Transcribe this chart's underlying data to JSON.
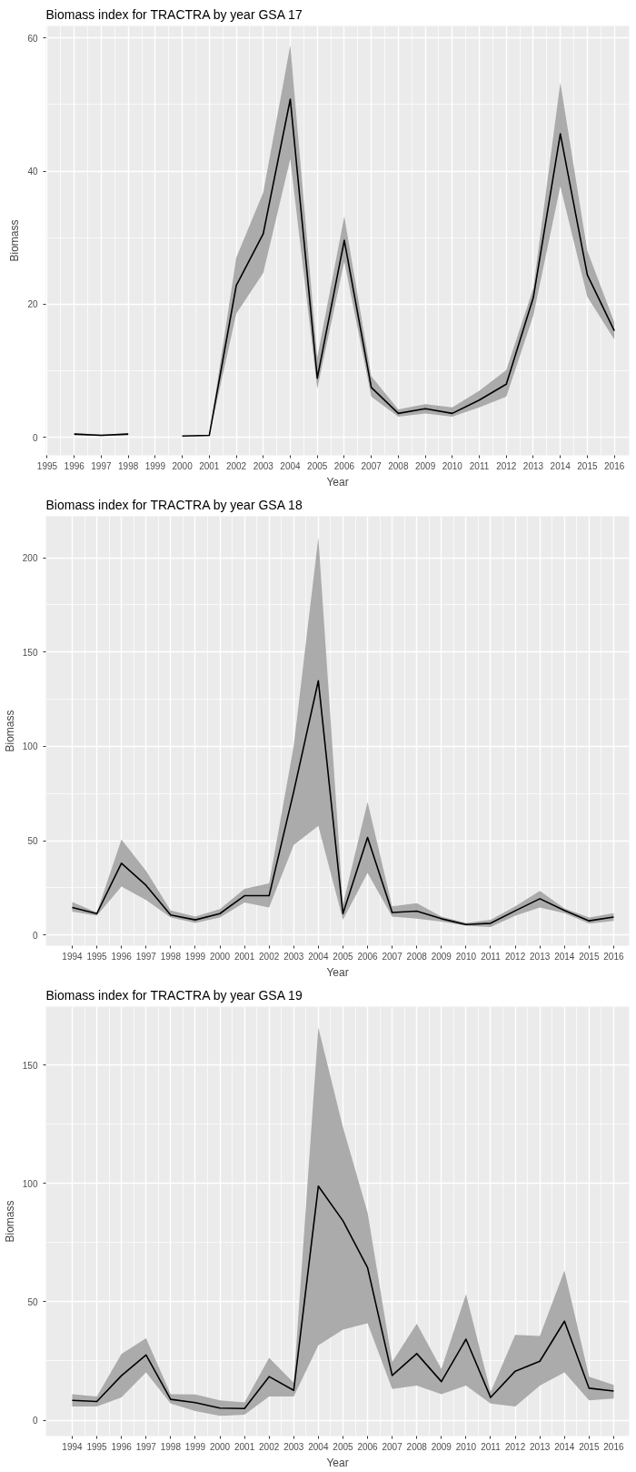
{
  "chart_data": [
    {
      "type": "line",
      "title": "Biomass index for TRACTRA by year GSA 17",
      "xlabel": "Year",
      "ylabel": "Biomass",
      "x": [
        1996,
        1997,
        1998,
        1999,
        2000,
        2001,
        2002,
        2003,
        2004,
        2005,
        2006,
        2007,
        2008,
        2009,
        2010,
        2011,
        2012,
        2013,
        2014,
        2015,
        2016
      ],
      "series": [
        {
          "color": "#000000",
          "values": [
            0.5,
            0.3,
            0.5,
            null,
            0.2,
            0.3,
            22.8,
            30.6,
            50.8,
            8.9,
            29.6,
            7.5,
            3.6,
            4.3,
            3.6,
            5.6,
            8.0,
            21,
            45.6,
            24.4,
            16
          ],
          "lower": [
            0.3,
            0.2,
            0.3,
            null,
            0.1,
            0.2,
            18.6,
            24.7,
            41.8,
            7.3,
            26.4,
            6.1,
            3.1,
            3.6,
            3.1,
            4.5,
            6.1,
            18.3,
            37.7,
            21.1,
            14.7
          ],
          "upper": [
            0.6,
            0.4,
            0.6,
            null,
            0.2,
            0.3,
            27,
            36.8,
            58.9,
            12,
            33.2,
            9.2,
            4.2,
            5,
            4.5,
            7,
            10.1,
            22.4,
            53.3,
            28,
            17.3
          ]
        }
      ],
      "xlim": [
        1994.95,
        2016.55
      ],
      "xticks": [
        1995,
        1996,
        1997,
        1998,
        1999,
        2000,
        2001,
        2002,
        2003,
        2004,
        2005,
        2006,
        2007,
        2008,
        2009,
        2010,
        2011,
        2012,
        2013,
        2014,
        2015,
        2016
      ],
      "ylim": [
        -2.7,
        61.8
      ],
      "yticks": [
        0,
        20,
        40,
        60
      ],
      "grid": true,
      "line_style": "solid"
    },
    {
      "type": "line",
      "title": "Biomass index for TRACTRA by year GSA 18",
      "xlabel": "Year",
      "ylabel": "Biomass",
      "x": [
        1994,
        1995,
        1996,
        1997,
        1998,
        1999,
        2000,
        2001,
        2002,
        2003,
        2004,
        2005,
        2006,
        2007,
        2008,
        2009,
        2010,
        2011,
        2012,
        2013,
        2014,
        2015,
        2016
      ],
      "series": [
        {
          "color": "#000000",
          "values": [
            14.6,
            11.3,
            38,
            26.3,
            10.6,
            8,
            11.3,
            20.8,
            20.8,
            76,
            134.8,
            11.3,
            51.7,
            11.9,
            12.6,
            8.6,
            5.5,
            6.2,
            12.8,
            19.2,
            13,
            7.5,
            9.5
          ],
          "lower": [
            12.4,
            10.2,
            25.6,
            18.6,
            9.3,
            6.4,
            9.3,
            17.2,
            14.6,
            47.7,
            57.9,
            8,
            32.9,
            9.7,
            8.6,
            7.1,
            4.9,
            4.2,
            10.2,
            14.6,
            11.5,
            6,
            7.5
          ],
          "upper": [
            17.5,
            11.9,
            50.6,
            34,
            13,
            9.7,
            13.7,
            24.5,
            27.4,
            100.3,
            210.8,
            16.4,
            70.5,
            15.2,
            16.8,
            9.7,
            6.4,
            8,
            15.2,
            23.4,
            14.1,
            9.3,
            11.5
          ]
        }
      ],
      "xlim": [
        1992.93,
        2016.63
      ],
      "xticks": [
        1994,
        1995,
        1996,
        1997,
        1998,
        1999,
        2000,
        2001,
        2002,
        2003,
        2004,
        2005,
        2006,
        2007,
        2008,
        2009,
        2010,
        2011,
        2012,
        2013,
        2014,
        2015,
        2016
      ],
      "ylim": [
        -5.7,
        222
      ],
      "yticks": [
        0,
        50,
        100,
        150,
        200
      ],
      "grid": true,
      "line_style": "solid"
    },
    {
      "type": "line",
      "title": "Biomass index for TRACTRA by year GSA 19",
      "xlabel": "Year",
      "ylabel": "Biomass",
      "x": [
        1994,
        1995,
        1996,
        1997,
        1998,
        1999,
        2000,
        2001,
        2002,
        2003,
        2004,
        2005,
        2006,
        2007,
        2008,
        2009,
        2010,
        2011,
        2012,
        2013,
        2014,
        2015,
        2016
      ],
      "series": [
        {
          "color": "#000000",
          "values": [
            8.4,
            7.9,
            18.8,
            27.5,
            8.8,
            7.4,
            5.1,
            4.9,
            18.4,
            12.6,
            98.8,
            84.2,
            64.4,
            18.9,
            28.1,
            16.3,
            34.2,
            9.6,
            20.7,
            24.9,
            41.8,
            13.5,
            12.3
          ],
          "lower": [
            5.8,
            5.8,
            9.6,
            20.2,
            7,
            3.9,
            1.8,
            2.3,
            10,
            10,
            31.6,
            38.2,
            40.9,
            13.2,
            14.6,
            11,
            14.6,
            7,
            5.8,
            14.6,
            20.2,
            8.4,
            9.1
          ],
          "upper": [
            11,
            10,
            28,
            34.6,
            11,
            10.9,
            8.4,
            7.5,
            26.3,
            15.8,
            165.8,
            123.7,
            87.7,
            24.6,
            40.7,
            21.6,
            53.2,
            11.9,
            36,
            35.6,
            63.2,
            18.4,
            14.9
          ]
        }
      ],
      "xlim": [
        1992.93,
        2016.63
      ],
      "xticks": [
        1994,
        1995,
        1996,
        1997,
        1998,
        1999,
        2000,
        2001,
        2002,
        2003,
        2004,
        2005,
        2006,
        2007,
        2008,
        2009,
        2010,
        2011,
        2012,
        2013,
        2014,
        2015,
        2016
      ],
      "ylim": [
        -6.7,
        174.6
      ],
      "yticks": [
        0,
        50,
        100,
        150
      ],
      "grid": true,
      "line_style": "solid"
    }
  ]
}
